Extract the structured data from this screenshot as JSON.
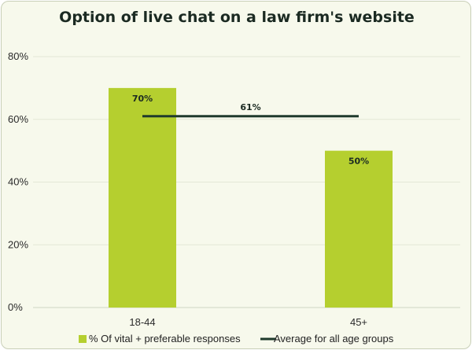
{
  "chart_data": {
    "type": "bar",
    "title": "Option of live chat on a law firm's website",
    "categories": [
      "18-44",
      "45+"
    ],
    "series": [
      {
        "name": "% Of vital + preferable responses",
        "type": "bar",
        "values": [
          70,
          50
        ],
        "labels": [
          "70%",
          "50%"
        ],
        "color": "#b5cf2f"
      },
      {
        "name": "Average for all age groups",
        "type": "line",
        "value": 61,
        "label": "61%",
        "color": "#1f3a2c"
      }
    ],
    "yaxis": {
      "min": 0,
      "max": 80,
      "step": 20,
      "ticks": [
        "0%",
        "20%",
        "40%",
        "60%",
        "80%"
      ]
    },
    "grid": true,
    "legend_position": "bottom-left"
  }
}
